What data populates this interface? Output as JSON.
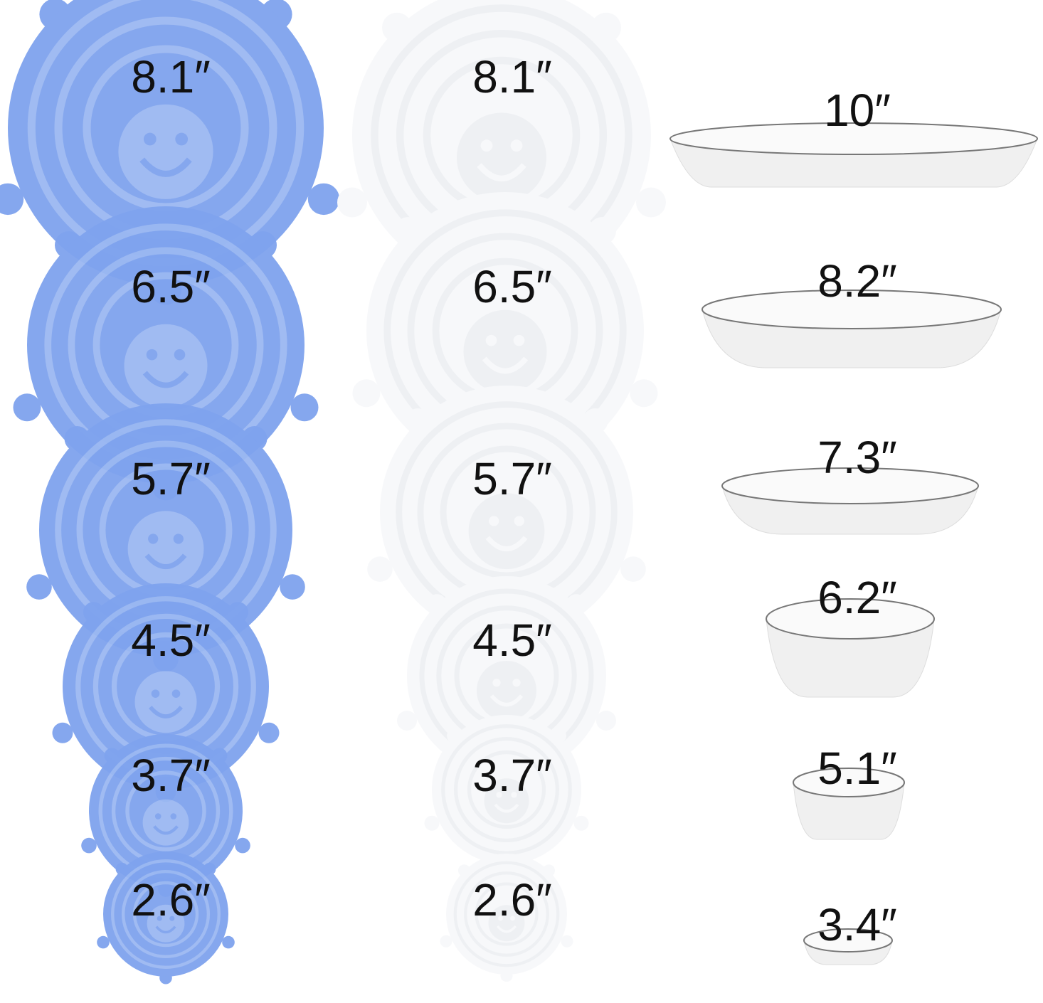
{
  "blue_lids": [
    "8.1″",
    "6.5″",
    "5.7″",
    "4.5″",
    "3.7″",
    "2.6″"
  ],
  "white_lids": [
    "8.1″",
    "6.5″",
    "5.7″",
    "4.5″",
    "3.7″",
    "2.6″"
  ],
  "dishes": [
    "10″",
    "8.2″",
    "7.3″",
    "6.2″",
    "5.1″",
    "3.4″"
  ]
}
